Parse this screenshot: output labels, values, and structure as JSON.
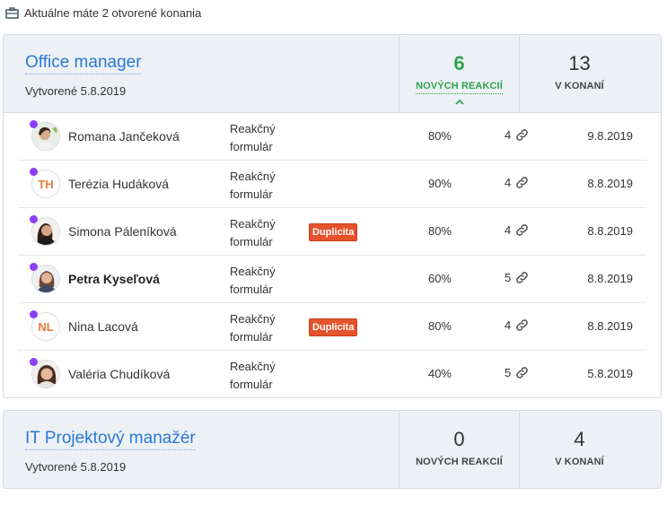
{
  "header_note": "Aktuálne máte 2 otvorené konania",
  "colors": {
    "accent_blue": "#2a79d4",
    "green": "#2da44e",
    "badge_red": "#e5522b",
    "dot_purple": "#8b3ff5"
  },
  "positions": [
    {
      "title": "Office manager",
      "created": "Vytvorené 5.8.2019",
      "new_reactions": {
        "count": "6",
        "label": "NOVÝCH REAKCIÍ"
      },
      "in_process": {
        "count": "13",
        "label": "V KONANÍ"
      },
      "candidates": [
        {
          "name": "Romana Jančeková",
          "avatar": "photo",
          "initials": "",
          "source_line1": "Reakčný",
          "source_line2": "formulár",
          "badge": "",
          "match": "80%",
          "links": "4",
          "date": "9.8.2019",
          "bold": false
        },
        {
          "name": "Terézia Hudáková",
          "avatar": "initials",
          "initials": "TH",
          "source_line1": "Reakčný",
          "source_line2": "formulár",
          "badge": "",
          "match": "90%",
          "links": "4",
          "date": "8.8.2019",
          "bold": false
        },
        {
          "name": "Simona Páleníková",
          "avatar": "photo",
          "initials": "",
          "source_line1": "Reakčný",
          "source_line2": "formulár",
          "badge": "Duplicita",
          "match": "80%",
          "links": "4",
          "date": "8.8.2019",
          "bold": false
        },
        {
          "name": "Petra Kyseľová",
          "avatar": "photo",
          "initials": "",
          "source_line1": "Reakčný",
          "source_line2": "formulár",
          "badge": "",
          "match": "60%",
          "links": "5",
          "date": "8.8.2019",
          "bold": true
        },
        {
          "name": "Nina Lacová",
          "avatar": "initials",
          "initials": "NL",
          "source_line1": "Reakčný",
          "source_line2": "formulár",
          "badge": "Duplicita",
          "match": "80%",
          "links": "4",
          "date": "8.8.2019",
          "bold": false
        },
        {
          "name": "Valéria Chudíková",
          "avatar": "photo",
          "initials": "",
          "source_line1": "Reakčný",
          "source_line2": "formulár",
          "badge": "",
          "match": "40%",
          "links": "5",
          "date": "5.8.2019",
          "bold": false
        }
      ]
    },
    {
      "title": "IT Projektový manažér",
      "created": "Vytvorené 5.8.2019",
      "new_reactions": {
        "count": "0",
        "label": "NOVÝCH REAKCIÍ"
      },
      "in_process": {
        "count": "4",
        "label": "V KONANÍ"
      },
      "candidates": []
    }
  ]
}
